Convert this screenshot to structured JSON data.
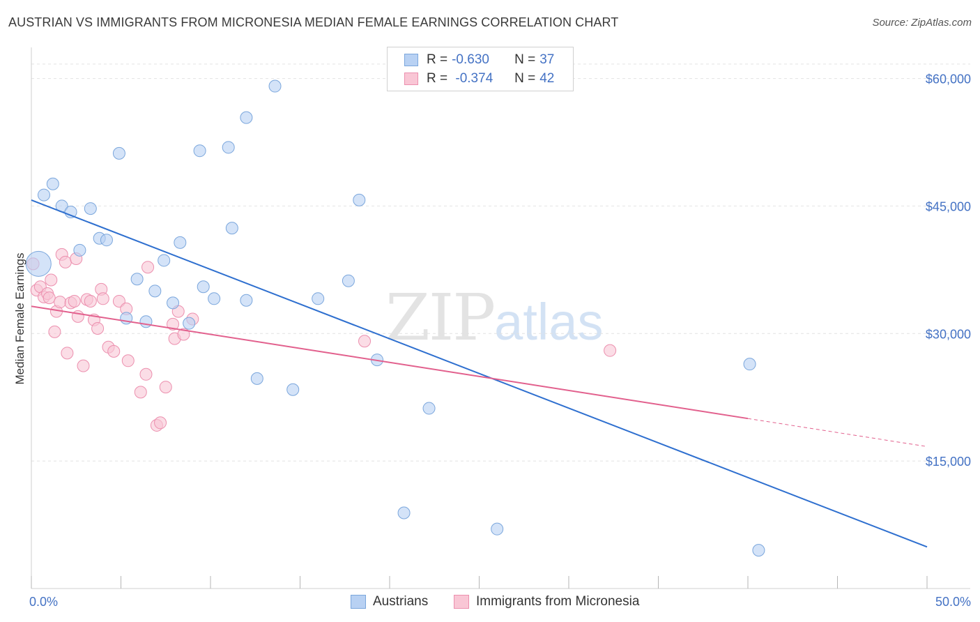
{
  "title": "AUSTRIAN VS IMMIGRANTS FROM MICRONESIA MEDIAN FEMALE EARNINGS CORRELATION CHART",
  "source": "Source: ZipAtlas.com",
  "watermark": {
    "zip": "ZIP",
    "atlas": "atlas"
  },
  "legend": {
    "rows": [
      {
        "r_label": "R = ",
        "r_value": "-0.630",
        "n_label": "N = ",
        "n_value": "37"
      },
      {
        "r_label": "R = ",
        "r_value": " -0.374",
        "n_label": "N = ",
        "n_value": "42"
      }
    ]
  },
  "bottom_legend": {
    "series1": "Austrians",
    "series2": "Immigrants from Micronesia"
  },
  "colors": {
    "blue_fill": "#b8d1f3",
    "blue_stroke": "#7aa6dc",
    "blue_line": "#2e6fcf",
    "pink_fill": "#f9c6d5",
    "pink_stroke": "#ec8fae",
    "pink_line": "#e2608d",
    "tick_text": "#4472c4"
  },
  "chart_data": {
    "type": "scatter",
    "title": "AUSTRIAN VS IMMIGRANTS FROM MICRONESIA MEDIAN FEMALE EARNINGS CORRELATION CHART",
    "xlabel": "",
    "ylabel": "Median Female Earnings",
    "xlim": [
      0,
      50
    ],
    "ylim": [
      0,
      63000
    ],
    "x_tick_labels": [
      "0.0%",
      "50.0%"
    ],
    "y_ticks": [
      15000,
      30000,
      45000,
      60000
    ],
    "y_tick_labels": [
      "$15,000",
      "$30,000",
      "$45,000",
      "$60,000"
    ],
    "grid": true,
    "legend": "top-center",
    "series": [
      {
        "name": "Austrians",
        "R": -0.63,
        "N": 37,
        "trend": {
          "x": [
            0,
            50
          ],
          "y": [
            45700,
            4900
          ]
        },
        "points": [
          {
            "x": 0.4,
            "y": 38200,
            "big": true
          },
          {
            "x": 0.7,
            "y": 46300
          },
          {
            "x": 1.2,
            "y": 47600
          },
          {
            "x": 1.7,
            "y": 45000
          },
          {
            "x": 2.2,
            "y": 44300
          },
          {
            "x": 2.7,
            "y": 39800
          },
          {
            "x": 3.3,
            "y": 44700
          },
          {
            "x": 3.8,
            "y": 41200
          },
          {
            "x": 4.2,
            "y": 41000
          },
          {
            "x": 4.9,
            "y": 51200
          },
          {
            "x": 5.3,
            "y": 31800
          },
          {
            "x": 5.9,
            "y": 36400
          },
          {
            "x": 6.4,
            "y": 31400
          },
          {
            "x": 6.9,
            "y": 35000
          },
          {
            "x": 7.4,
            "y": 38600
          },
          {
            "x": 7.9,
            "y": 33600
          },
          {
            "x": 8.3,
            "y": 40700
          },
          {
            "x": 8.8,
            "y": 31200
          },
          {
            "x": 9.4,
            "y": 51500
          },
          {
            "x": 9.6,
            "y": 35500
          },
          {
            "x": 10.2,
            "y": 34100
          },
          {
            "x": 11.0,
            "y": 51900
          },
          {
            "x": 11.2,
            "y": 42400
          },
          {
            "x": 12.0,
            "y": 33900
          },
          {
            "x": 12.0,
            "y": 55400
          },
          {
            "x": 13.6,
            "y": 59100
          },
          {
            "x": 12.6,
            "y": 24700
          },
          {
            "x": 14.6,
            "y": 23400
          },
          {
            "x": 16.0,
            "y": 34100
          },
          {
            "x": 17.7,
            "y": 36200
          },
          {
            "x": 18.3,
            "y": 45700
          },
          {
            "x": 19.3,
            "y": 26900
          },
          {
            "x": 22.2,
            "y": 21200
          },
          {
            "x": 20.8,
            "y": 8900
          },
          {
            "x": 26.0,
            "y": 7000
          },
          {
            "x": 40.1,
            "y": 26400
          },
          {
            "x": 40.6,
            "y": 4500
          }
        ]
      },
      {
        "name": "Immigrants from Micronesia",
        "R": -0.374,
        "N": 42,
        "trend": {
          "x": [
            0,
            40
          ],
          "y": [
            33200,
            20000
          ]
        },
        "trend_dashed": {
          "x": [
            40,
            50
          ],
          "y": [
            20000,
            16700
          ]
        },
        "points": [
          {
            "x": 0.1,
            "y": 38200
          },
          {
            "x": 0.3,
            "y": 35100
          },
          {
            "x": 0.5,
            "y": 35500
          },
          {
            "x": 0.7,
            "y": 34300
          },
          {
            "x": 0.9,
            "y": 34700
          },
          {
            "x": 1.0,
            "y": 34200
          },
          {
            "x": 1.1,
            "y": 36300
          },
          {
            "x": 1.3,
            "y": 30200
          },
          {
            "x": 1.4,
            "y": 32600
          },
          {
            "x": 1.6,
            "y": 33700
          },
          {
            "x": 1.7,
            "y": 39300
          },
          {
            "x": 1.9,
            "y": 38400
          },
          {
            "x": 2.0,
            "y": 27700
          },
          {
            "x": 2.2,
            "y": 33600
          },
          {
            "x": 2.4,
            "y": 33800
          },
          {
            "x": 2.5,
            "y": 38800
          },
          {
            "x": 2.6,
            "y": 32000
          },
          {
            "x": 2.9,
            "y": 26200
          },
          {
            "x": 3.1,
            "y": 34000
          },
          {
            "x": 3.3,
            "y": 33800
          },
          {
            "x": 3.5,
            "y": 31600
          },
          {
            "x": 3.7,
            "y": 30600
          },
          {
            "x": 3.9,
            "y": 35200
          },
          {
            "x": 4.0,
            "y": 34100
          },
          {
            "x": 4.3,
            "y": 28400
          },
          {
            "x": 4.6,
            "y": 27900
          },
          {
            "x": 4.9,
            "y": 33800
          },
          {
            "x": 5.3,
            "y": 32900
          },
          {
            "x": 5.4,
            "y": 26800
          },
          {
            "x": 6.1,
            "y": 23100
          },
          {
            "x": 6.4,
            "y": 25200
          },
          {
            "x": 6.5,
            "y": 37800
          },
          {
            "x": 7.0,
            "y": 19200
          },
          {
            "x": 7.2,
            "y": 19500
          },
          {
            "x": 7.5,
            "y": 23700
          },
          {
            "x": 7.9,
            "y": 31100
          },
          {
            "x": 8.0,
            "y": 29400
          },
          {
            "x": 8.2,
            "y": 32600
          },
          {
            "x": 8.5,
            "y": 29900
          },
          {
            "x": 9.0,
            "y": 31700
          },
          {
            "x": 18.6,
            "y": 29100
          },
          {
            "x": 32.3,
            "y": 28000
          }
        ]
      }
    ]
  }
}
